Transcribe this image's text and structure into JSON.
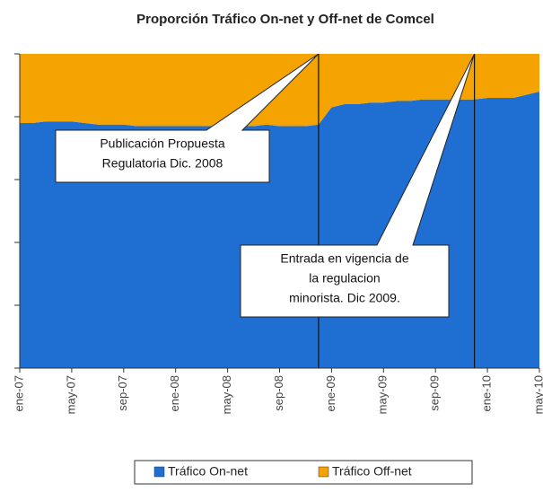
{
  "chart_data": {
    "type": "area",
    "stacked": true,
    "title": "Proporción Tráfico On-net y Off-net de Comcel",
    "categories": [
      "ene-07",
      null,
      null,
      null,
      "may-07",
      null,
      null,
      null,
      "sep-07",
      null,
      null,
      null,
      "ene-08",
      null,
      null,
      null,
      "may-08",
      null,
      null,
      null,
      "sep-08",
      null,
      null,
      null,
      "ene-09",
      null,
      null,
      null,
      "may-09",
      null,
      null,
      null,
      "sep-09",
      null,
      null,
      null,
      "ene-10",
      null,
      null,
      null,
      "may-10"
    ],
    "series": [
      {
        "name": "Tráfico On-net",
        "color": "#1f6fd2",
        "values": [
          78,
          78,
          78.5,
          78.5,
          78.5,
          78,
          77.5,
          77.5,
          77.5,
          77,
          77,
          77,
          77,
          77,
          77,
          77,
          77,
          77,
          77,
          77.5,
          77,
          77,
          77,
          77.5,
          83,
          84,
          84,
          84.5,
          84.5,
          85,
          85,
          85.5,
          85.5,
          85.5,
          85.5,
          85.5,
          86,
          86,
          86,
          87,
          88
        ]
      },
      {
        "name": "Tráfico Off-net",
        "color": "#f5a300",
        "values": [
          22,
          22,
          21.5,
          21.5,
          21.5,
          22,
          22.5,
          22.5,
          22.5,
          23,
          23,
          23,
          23,
          23,
          23,
          23,
          23,
          23,
          23,
          22.5,
          23,
          23,
          23,
          22.5,
          17,
          16,
          16,
          15.5,
          15.5,
          15,
          15,
          14.5,
          14.5,
          14.5,
          14.5,
          14.5,
          14,
          14,
          14,
          13,
          12
        ]
      }
    ],
    "ylim": [
      0,
      100
    ],
    "yticks": [
      0,
      20,
      40,
      60,
      80,
      100
    ],
    "annotations": [
      {
        "lines": [
          "Publicación Propuesta",
          "Regulatoria Dic. 2008"
        ]
      },
      {
        "lines": [
          "Entrada en vigencia de",
          "la regulacion",
          "minorista. Dic 2009."
        ]
      }
    ]
  }
}
